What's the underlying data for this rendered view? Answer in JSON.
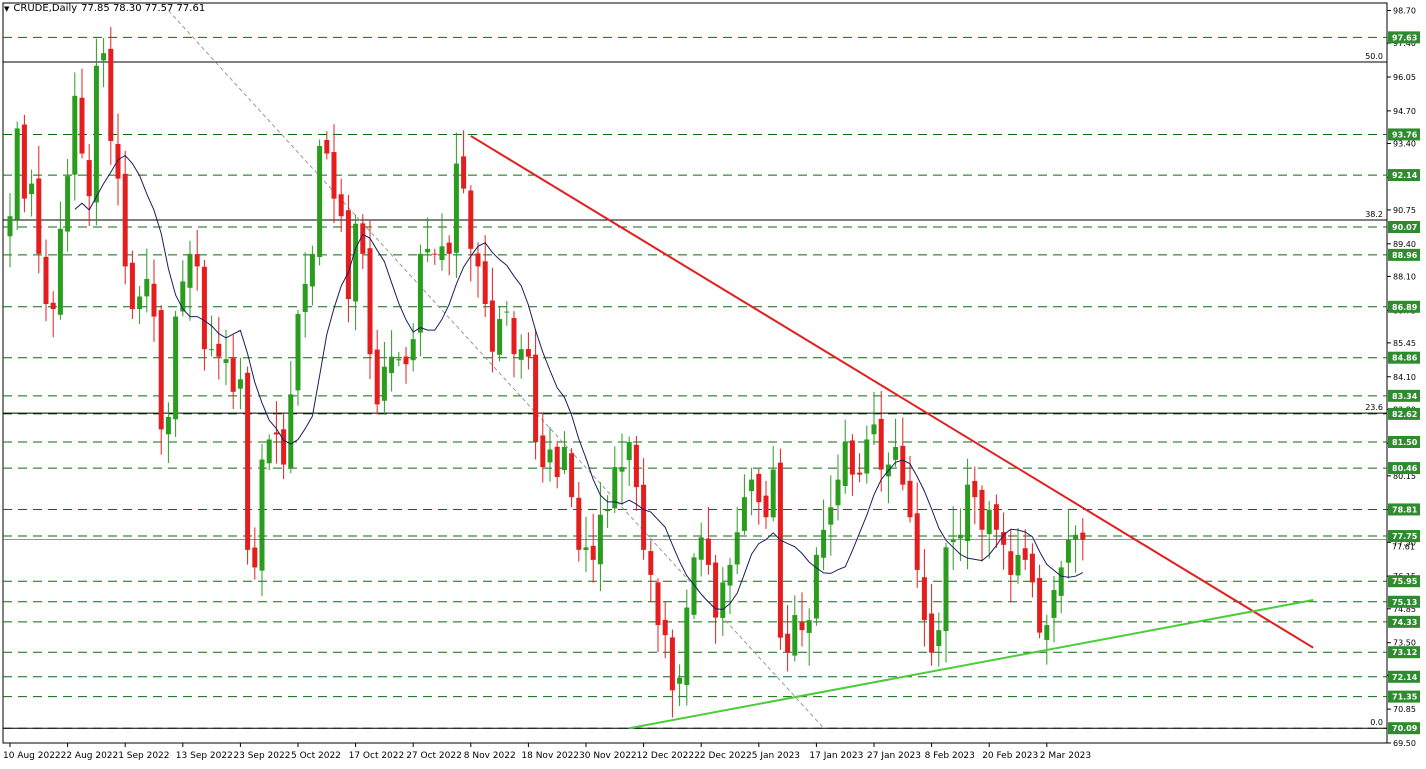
{
  "header": {
    "symbol_tf": "CRUDE,Daily",
    "ohlc": "77.85 78.30 77.57 77.61"
  },
  "colors": {
    "bull": "#2a9d1f",
    "bear": "#e41e1e",
    "level": "#0b6b0b",
    "fib": "#000000",
    "resistance": "#e41e1e",
    "support": "#4ccc3a",
    "ma": "#1c1c5e",
    "channel": "#999999",
    "price_label": "#2e8b2e",
    "bg": "#ffffff"
  },
  "chart_data": {
    "type": "candlestick",
    "symbol": "CRUDE",
    "timeframe": "Daily",
    "ylim": [
      69.5,
      99.0
    ],
    "y_ticks": [
      "98.70",
      "97.40",
      "96.05",
      "94.70",
      "93.40",
      "92.05",
      "90.75",
      "89.40",
      "88.10",
      "86.75",
      "85.45",
      "84.10",
      "82.80",
      "81.45",
      "80.15",
      "78.80",
      "77.50",
      "76.15",
      "74.85",
      "73.50",
      "72.20",
      "70.85",
      "69.50"
    ],
    "x_labels": [
      {
        "label": "10 Aug 2022",
        "index": 0
      },
      {
        "label": "22 Aug 2022",
        "index": 8
      },
      {
        "label": "1 Sep 2022",
        "index": 16
      },
      {
        "label": "13 Sep 2022",
        "index": 24
      },
      {
        "label": "23 Sep 2022",
        "index": 32
      },
      {
        "label": "5 Oct 2022",
        "index": 40
      },
      {
        "label": "17 Oct 2022",
        "index": 48
      },
      {
        "label": "27 Oct 2022",
        "index": 56
      },
      {
        "label": "8 Nov 2022",
        "index": 64
      },
      {
        "label": "18 Nov 2022",
        "index": 72
      },
      {
        "label": "30 Nov 2022",
        "index": 80
      },
      {
        "label": "12 Dec 2022",
        "index": 88
      },
      {
        "label": "22 Dec 2022",
        "index": 96
      },
      {
        "label": "5 Jan 2023",
        "index": 104
      },
      {
        "label": "17 Jan 2023",
        "index": 112
      },
      {
        "label": "27 Jan 2023",
        "index": 120
      },
      {
        "label": "8 Feb 2023",
        "index": 128
      },
      {
        "label": "20 Feb 2023",
        "index": 136
      },
      {
        "label": "2 Mar 2023",
        "index": 144
      }
    ],
    "close_path": [
      90.5,
      94.0,
      91.2,
      91.8,
      89.0,
      87.0,
      86.8,
      90.0,
      92.1,
      95.3,
      93.0,
      91.3,
      96.5,
      97.0,
      93.5,
      92.0,
      88.5,
      86.8,
      87.3,
      88.0,
      86.5,
      82.0,
      82.5,
      86.5,
      87.9,
      89.0,
      88.5,
      85.2,
      85.2,
      84.9,
      84.8,
      83.5,
      84.0,
      77.2,
      76.5,
      80.8,
      81.6,
      81.8,
      80.6,
      83.4,
      86.6,
      87.8,
      89.0,
      93.3,
      93.0,
      91.2,
      90.5,
      87.2,
      90.2,
      89.0,
      85.0,
      83.0,
      84.5,
      84.9,
      84.8,
      84.6,
      85.6,
      89.0,
      89.2,
      89.0,
      89.3,
      89.0,
      92.6,
      91.6,
      89.2,
      88.5,
      87.0,
      85.1,
      86.4,
      86.7,
      85.0,
      85.2,
      84.9,
      81.5,
      80.5,
      81.2,
      80.1,
      81.3,
      79.3,
      77.2,
      77.3,
      76.8,
      78.6,
      78.8,
      80.5,
      80.5,
      81.5,
      79.7,
      77.2,
      76.2,
      74.2,
      73.8,
      71.6,
      72.1,
      74.9,
      76.9,
      77.7,
      76.6,
      74.5,
      75.9,
      76.6,
      77.9,
      79.3,
      80.0,
      79.1,
      78.5,
      80.4,
      73.7,
      73.1,
      74.6,
      74.0,
      74.4,
      77.0,
      78.0,
      78.9,
      80.0,
      81.5,
      80.2,
      80.2,
      81.6,
      82.2,
      80.4,
      80.6,
      81.3,
      79.8,
      78.5,
      76.4,
      74.4,
      73.1,
      74.0,
      77.3,
      77.6,
      77.8,
      79.8,
      79.3,
      78.0,
      78.8,
      78.0,
      77.4,
      76.2,
      77.0,
      76.8,
      75.9,
      73.9,
      74.2,
      75.6,
      76.5,
      77.6,
      77.8,
      77.61
    ],
    "ma_period": 10,
    "price_levels": [
      "97.63",
      "93.76",
      "92.14",
      "90.07",
      "88.96",
      "86.89",
      "84.86",
      "83.34",
      "82.62",
      "81.50",
      "80.46",
      "78.81",
      "77.75",
      "75.95",
      "75.13",
      "74.33",
      "73.12",
      "72.14",
      "71.35",
      "70.09"
    ],
    "current_price": "77.61",
    "fibonacci": [
      {
        "label": "50.0",
        "value": 96.65
      },
      {
        "label": "38.2",
        "value": 90.35
      },
      {
        "label": "23.6",
        "value": 82.65
      },
      {
        "label": "0.0",
        "value": 70.09
      }
    ],
    "trendlines": [
      {
        "name": "resistance",
        "from": [
          64,
          93.7
        ],
        "to": [
          181,
          73.3
        ]
      },
      {
        "name": "support",
        "from": [
          86,
          70.09
        ],
        "to": [
          181,
          75.2
        ]
      },
      {
        "name": "channel",
        "from": [
          22,
          98.7
        ],
        "to": [
          113,
          70.1
        ]
      }
    ]
  }
}
